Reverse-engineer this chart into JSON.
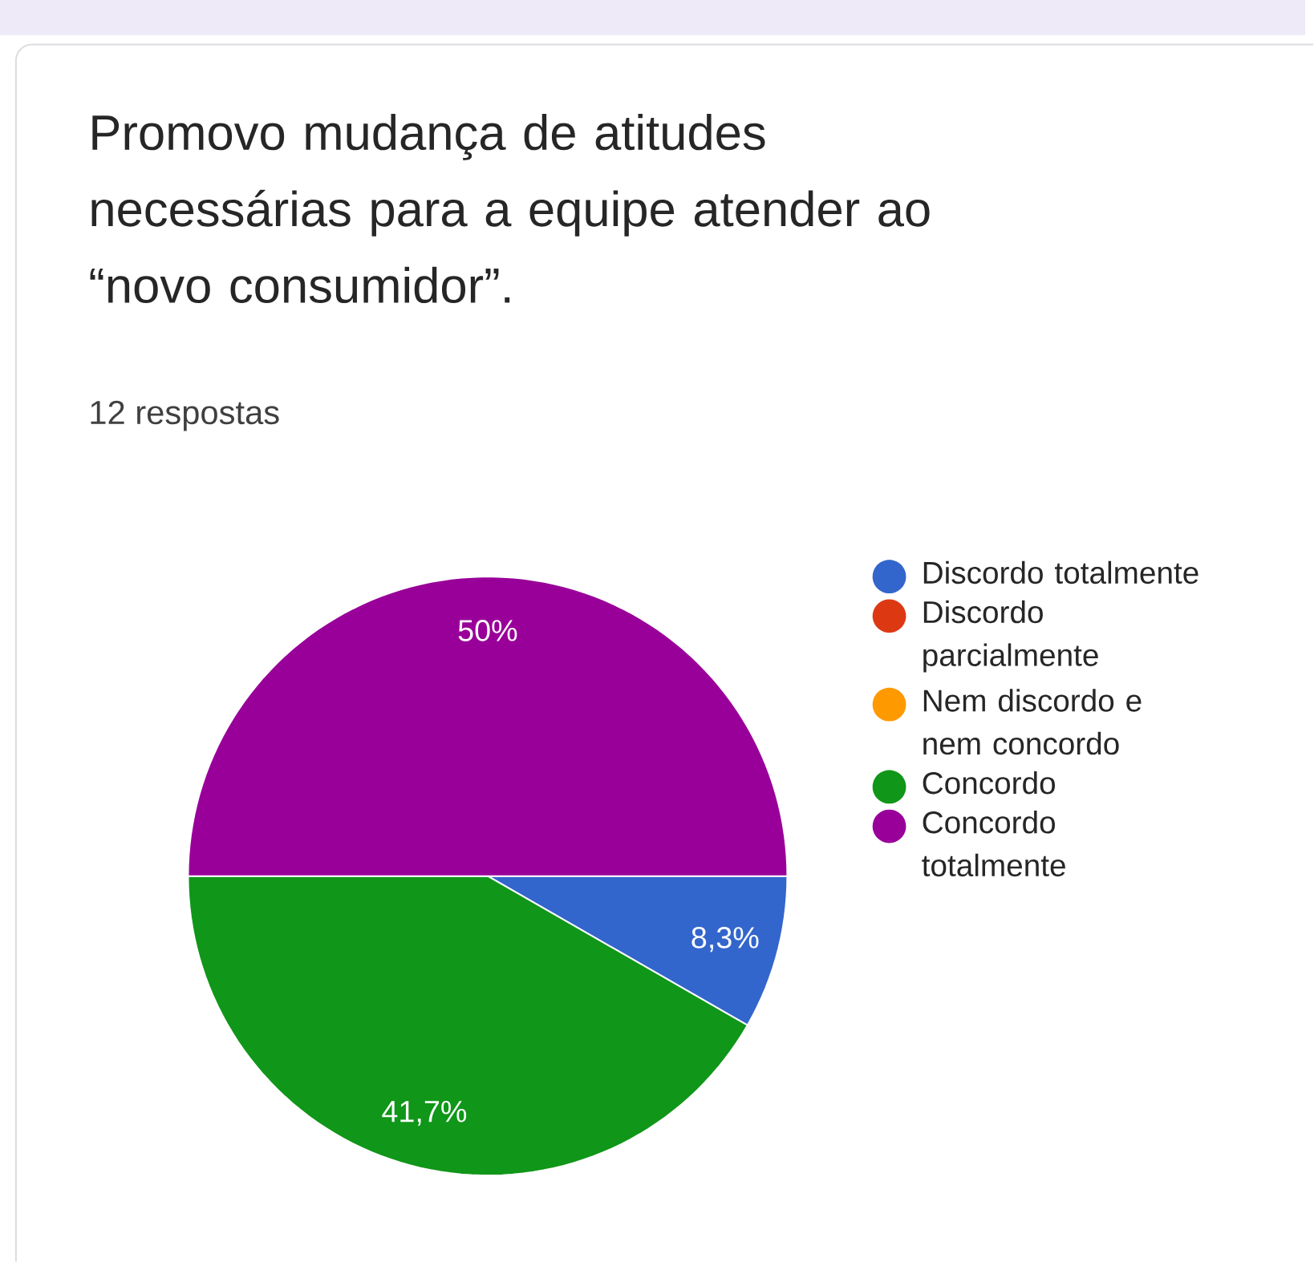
{
  "chart_data": {
    "type": "pie",
    "title": "Promovo mudança de atitudes necessárias para a equipe atender ao “novo consumidor”.",
    "subtitle": "12 respostas",
    "categories": [
      "Discordo totalmente",
      "Discordo parcialmente",
      "Nem discordo e nem concordo",
      "Concordo",
      "Concordo totalmente"
    ],
    "values": [
      8.3,
      0,
      0,
      41.7,
      50
    ],
    "colors": [
      "#3366cc",
      "#dc3912",
      "#ff9900",
      "#109618",
      "#990099"
    ],
    "value_labels": [
      "8,3%",
      null,
      null,
      "41,7%",
      "50%"
    ],
    "legend": "right"
  }
}
